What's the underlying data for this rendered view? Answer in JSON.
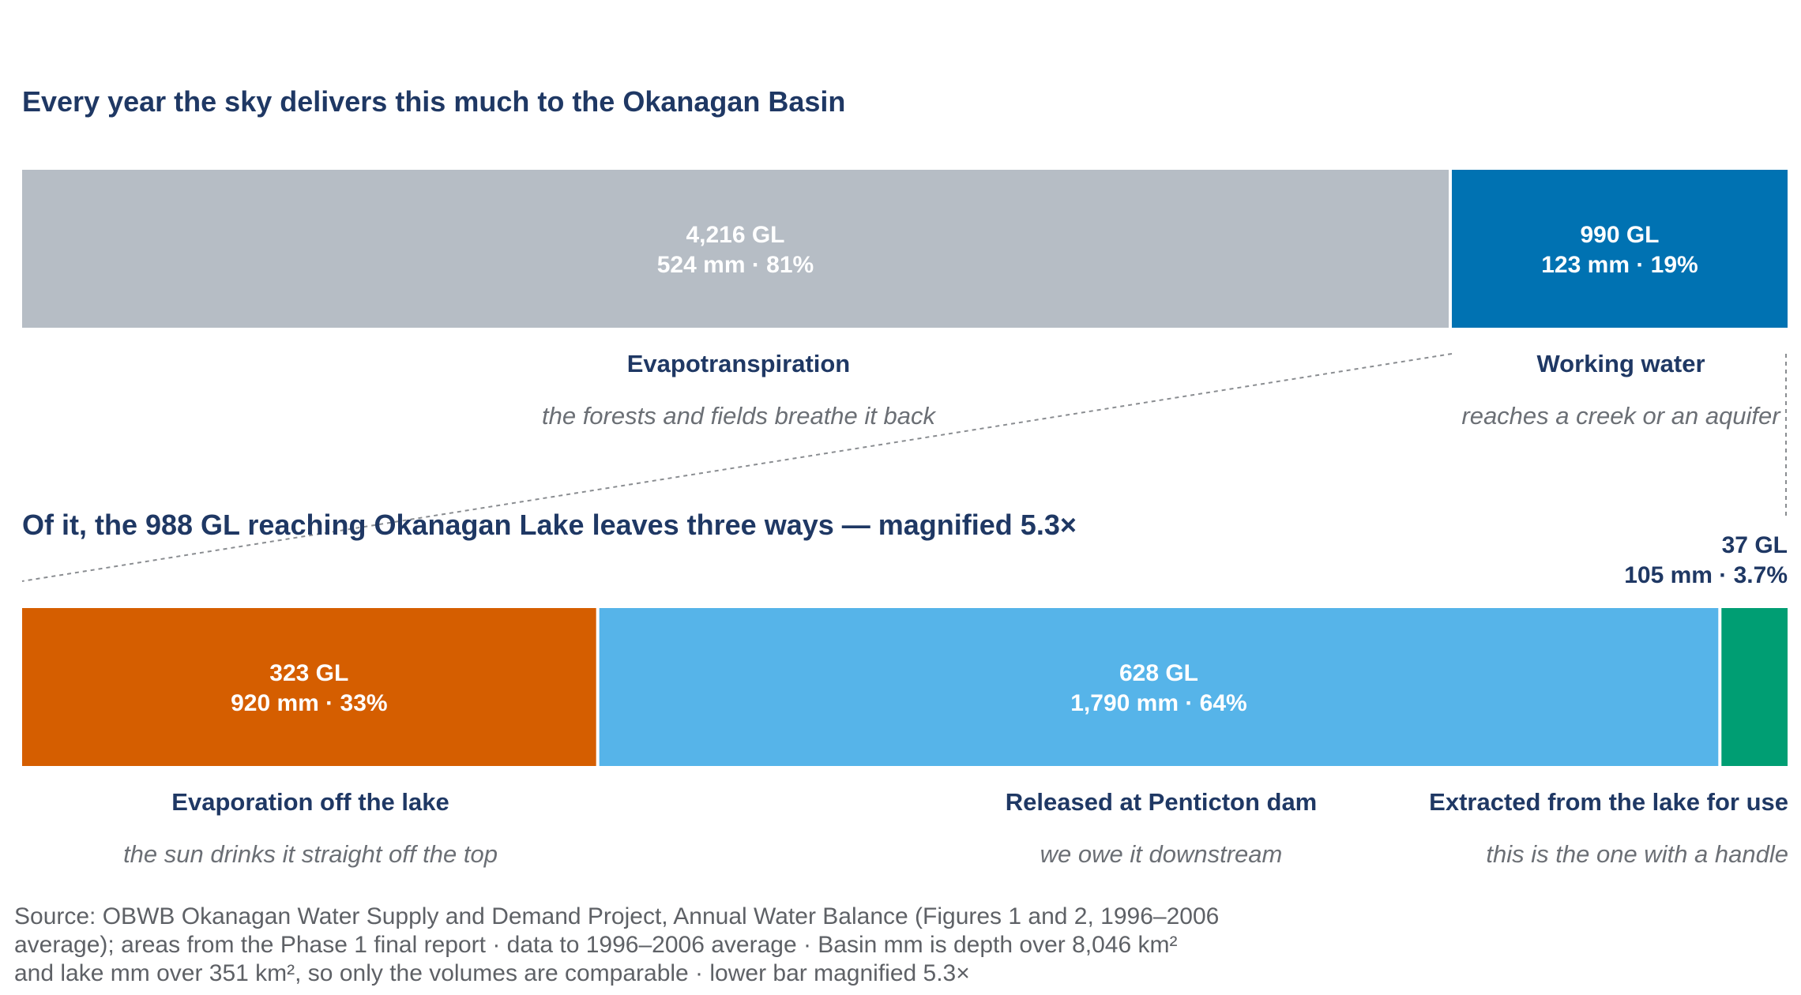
{
  "chart_data": [
    {
      "type": "bar",
      "subtype": "stacked-100-horizontal",
      "title": "Every year the sky delivers this much to the Okanagan Basin",
      "series": [
        {
          "name": "Evapotranspiration",
          "subtitle": "the forests and fields breathe it back",
          "value": 4216,
          "value_label": "4,216 GL",
          "detail_label": "524 mm · 81%",
          "color": "#b6bdc5"
        },
        {
          "name": "Working water",
          "subtitle": "reaches a creek or an aquifer",
          "value": 990,
          "value_label": "990 GL",
          "detail_label": "123 mm · 19%",
          "color": "#0072b2"
        }
      ]
    },
    {
      "type": "bar",
      "subtype": "stacked-100-horizontal",
      "title": "Of it, the 988 GL reaching Okanagan Lake leaves three ways — magnified 5.3×",
      "series": [
        {
          "name": "Evaporation off the lake",
          "subtitle": "the sun drinks it straight off the top",
          "value": 323,
          "value_label": "323 GL",
          "detail_label": "920 mm · 33%",
          "color": "#d55e00"
        },
        {
          "name": "Released at Penticton dam",
          "subtitle": "we owe it downstream",
          "value": 628,
          "value_label": "628 GL",
          "detail_label": "1,790 mm · 64%",
          "color": "#56b4e9"
        },
        {
          "name": "Extracted from the lake for use",
          "subtitle": "this is the one with a handle",
          "value": 37,
          "value_label": "37 GL",
          "detail_label": "105 mm · 3.7%",
          "color": "#009e73"
        }
      ]
    }
  ],
  "source_lines": [
    "Source: OBWB Okanagan Water Supply and Demand Project, Annual Water Balance (Figures 1 and 2, 1996–2006",
    "average); areas from the Phase 1 final report · data to 1996–2006 average · Basin mm is depth over 8,046 km²",
    "and lake mm over 351 km², so only the volumes are comparable · lower bar magnified 5.3×"
  ]
}
